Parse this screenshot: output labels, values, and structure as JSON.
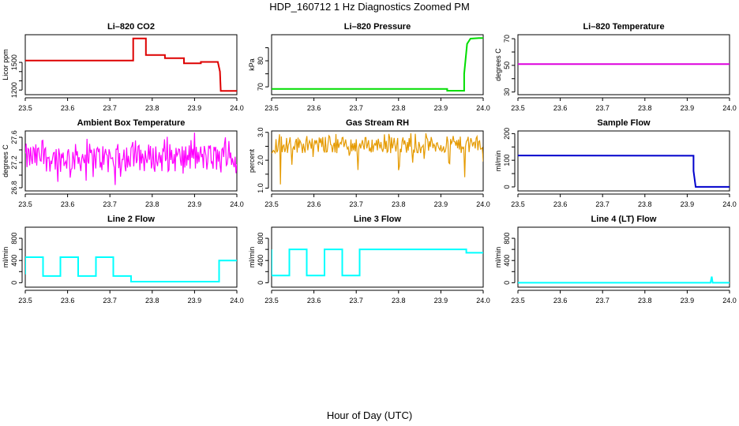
{
  "title": "HDP_160712  1 Hz Diagnostics Zoomed PM",
  "xlabel": "Hour of Day (UTC)",
  "chart_data": [
    {
      "type": "line",
      "title": "Li–820 CO2",
      "ylabel": "Licor ppm",
      "xlim": [
        23.5,
        24.0
      ],
      "ylim": [
        1150,
        1800
      ],
      "xticks": [
        "23.5",
        "23.6",
        "23.7",
        "23.8",
        "23.9",
        "24.0"
      ],
      "yticks": [
        1200,
        1300,
        1400,
        1500
      ],
      "ytick_labels": [
        "1200",
        "",
        "",
        "1500"
      ],
      "color": "#dd0000",
      "render": "step",
      "x": [
        23.5,
        23.755,
        23.755,
        23.785,
        23.785,
        23.83,
        23.83,
        23.875,
        23.875,
        23.915,
        23.915,
        23.955,
        23.96,
        23.962,
        23.962,
        24.0
      ],
      "y": [
        1520,
        1520,
        1760,
        1760,
        1580,
        1580,
        1545,
        1545,
        1490,
        1490,
        1505,
        1505,
        1400,
        1190,
        1190,
        1190
      ]
    },
    {
      "type": "line",
      "title": "Li–820 Pressure",
      "ylabel": "kPa",
      "xlim": [
        23.5,
        24.0
      ],
      "ylim": [
        67,
        90
      ],
      "xticks": [
        "23.5",
        "23.6",
        "23.7",
        "23.8",
        "23.9",
        "24.0"
      ],
      "yticks": [
        70,
        75,
        80,
        85
      ],
      "ytick_labels": [
        "70",
        "",
        "80",
        ""
      ],
      "color": "#00dd00",
      "render": "step",
      "x": [
        23.5,
        23.915,
        23.915,
        23.955,
        23.955,
        23.962,
        23.97,
        23.99,
        24.0
      ],
      "y": [
        69.2,
        69.2,
        68.5,
        68.5,
        75,
        86.5,
        88.5,
        88.7,
        88.7
      ]
    },
    {
      "type": "line",
      "title": "Li–820 Temperature",
      "ylabel": "degrees C",
      "xlim": [
        23.5,
        24.0
      ],
      "ylim": [
        28,
        73
      ],
      "xticks": [
        "23.5",
        "23.6",
        "23.7",
        "23.8",
        "23.9",
        "24.0"
      ],
      "yticks": [
        30,
        40,
        50,
        60,
        70
      ],
      "ytick_labels": [
        "30",
        "",
        "50",
        "",
        "70"
      ],
      "color": "#dd00dd",
      "render": "step",
      "x": [
        23.5,
        24.0
      ],
      "y": [
        51,
        51
      ]
    },
    {
      "type": "line",
      "title": "Ambient Box Temperature",
      "ylabel": "degrees C",
      "xlim": [
        23.5,
        24.0
      ],
      "ylim": [
        26.75,
        27.7
      ],
      "xticks": [
        "23.5",
        "23.6",
        "23.7",
        "23.8",
        "23.9",
        "24.0"
      ],
      "yticks": [
        26.8,
        27.0,
        27.2,
        27.4,
        27.6
      ],
      "ytick_labels": [
        "26.8",
        "",
        "27.2",
        "",
        "27.6"
      ],
      "color": "#ff00ff",
      "render": "noise",
      "noise": {
        "lo": 27.05,
        "hi": 27.5,
        "min": 26.82,
        "max": 27.68
      }
    },
    {
      "type": "line",
      "title": "Gas Stream RH",
      "ylabel": "percent",
      "xlim": [
        23.5,
        24.0
      ],
      "ylim": [
        0.9,
        3.05
      ],
      "xticks": [
        "23.5",
        "23.6",
        "23.7",
        "23.8",
        "23.9",
        "24.0"
      ],
      "yticks": [
        1.0,
        1.5,
        2.0,
        2.5,
        3.0
      ],
      "ytick_labels": [
        "1.0",
        "",
        "2.0",
        "",
        "3.0"
      ],
      "color": "#e59a00",
      "render": "noise",
      "noise": {
        "lo": 2.25,
        "hi": 2.85,
        "min": 1.0,
        "max": 3.0
      }
    },
    {
      "type": "line",
      "title": "Sample Flow",
      "ylabel": "ml/min",
      "xlim": [
        23.5,
        24.0
      ],
      "ylim": [
        -15,
        210
      ],
      "xticks": [
        "23.5",
        "23.6",
        "23.7",
        "23.8",
        "23.9",
        "24.0"
      ],
      "yticks": [
        0,
        50,
        100,
        150,
        200
      ],
      "ytick_labels": [
        "0",
        "",
        "100",
        "",
        "200"
      ],
      "color": "#0000cc",
      "render": "step",
      "x": [
        23.5,
        23.915,
        23.915,
        23.92,
        24.0
      ],
      "y": [
        118,
        117,
        60,
        0,
        0
      ]
    },
    {
      "type": "line",
      "title": "Line 2 Flow",
      "ylabel": "ml/min",
      "xlim": [
        23.5,
        24.0
      ],
      "ylim": [
        -80,
        1000
      ],
      "xticks": [
        "23.5",
        "23.6",
        "23.7",
        "23.8",
        "23.9",
        "24.0"
      ],
      "yticks": [
        0,
        200,
        400,
        600,
        800
      ],
      "ytick_labels": [
        "0",
        "",
        "400",
        "",
        "800"
      ],
      "color": "#00ffff",
      "render": "step",
      "x": [
        23.5,
        23.5,
        23.542,
        23.542,
        23.583,
        23.583,
        23.625,
        23.625,
        23.667,
        23.667,
        23.708,
        23.708,
        23.75,
        23.75,
        23.958,
        23.958,
        24.0
      ],
      "y": [
        150,
        460,
        460,
        120,
        120,
        460,
        460,
        120,
        120,
        460,
        460,
        120,
        120,
        20,
        20,
        400,
        400
      ]
    },
    {
      "type": "line",
      "title": "Line 3 Flow",
      "ylabel": "ml/min",
      "xlim": [
        23.5,
        24.0
      ],
      "ylim": [
        -80,
        1000
      ],
      "xticks": [
        "23.5",
        "23.6",
        "23.7",
        "23.8",
        "23.9",
        "24.0"
      ],
      "yticks": [
        0,
        200,
        400,
        600,
        800
      ],
      "ytick_labels": [
        "0",
        "",
        "400",
        "",
        "800"
      ],
      "color": "#00ffff",
      "render": "step",
      "x": [
        23.5,
        23.5,
        23.5,
        23.542,
        23.542,
        23.583,
        23.583,
        23.625,
        23.625,
        23.667,
        23.667,
        23.708,
        23.708,
        23.96,
        23.96,
        24.0
      ],
      "y": [
        600,
        130,
        130,
        130,
        600,
        600,
        130,
        130,
        600,
        600,
        130,
        130,
        600,
        600,
        540,
        540
      ]
    },
    {
      "type": "line",
      "title": "Line 4 (LT) Flow",
      "ylabel": "ml/min",
      "xlim": [
        23.5,
        24.0
      ],
      "ylim": [
        -80,
        1000
      ],
      "xticks": [
        "23.5",
        "23.6",
        "23.7",
        "23.8",
        "23.9",
        "24.0"
      ],
      "yticks": [
        0,
        200,
        400,
        600,
        800
      ],
      "ytick_labels": [
        "0",
        "",
        "400",
        "",
        "800"
      ],
      "color": "#00ffff",
      "render": "step",
      "x": [
        23.5,
        23.955,
        23.958,
        23.96,
        23.963,
        24.0
      ],
      "y": [
        0,
        0,
        110,
        0,
        0,
        0
      ]
    }
  ]
}
